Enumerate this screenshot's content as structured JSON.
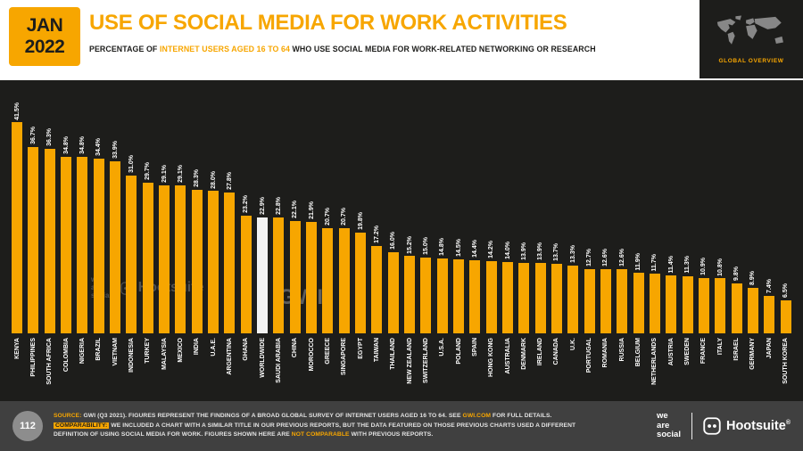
{
  "header": {
    "date_line1": "JAN",
    "date_line2": "2022",
    "title": "USE OF SOCIAL MEDIA FOR WORK ACTIVITIES",
    "subtitle_prefix": "PERCENTAGE OF ",
    "subtitle_highlight": "INTERNET USERS AGED 16 TO 64",
    "subtitle_suffix": " WHO USE SOCIAL MEDIA FOR WORK-RELATED NETWORKING OR RESEARCH",
    "corner_label": "GLOBAL OVERVIEW"
  },
  "chart_data": {
    "type": "bar",
    "title": "USE OF SOCIAL MEDIA FOR WORK ACTIVITIES",
    "ylabel": "Percentage of internet users aged 16 to 64",
    "ylim": [
      0,
      45
    ],
    "grid": false,
    "legend": "none",
    "bar_color": "#f7a600",
    "highlight_color": "#f2f2f2",
    "highlight_category": "WORLDWIDE",
    "value_suffix": "%",
    "categories": [
      "KENYA",
      "PHILIPPINES",
      "SOUTH AFRICA",
      "COLOMBIA",
      "NIGERIA",
      "BRAZIL",
      "VIETNAM",
      "INDONESIA",
      "TURKEY",
      "MALAYSIA",
      "MEXICO",
      "INDIA",
      "U.A.E.",
      "ARGENTINA",
      "GHANA",
      "WORLDWIDE",
      "SAUDI ARABIA",
      "CHINA",
      "MOROCCO",
      "GREECE",
      "SINGAPORE",
      "EGYPT",
      "TAIWAN",
      "THAILAND",
      "NEW ZEALAND",
      "SWITZERLAND",
      "U.S.A.",
      "POLAND",
      "SPAIN",
      "HONG KONG",
      "AUSTRALIA",
      "DENMARK",
      "IRELAND",
      "CANADA",
      "U.K.",
      "PORTUGAL",
      "ROMANIA",
      "RUSSIA",
      "BELGIUM",
      "NETHERLANDS",
      "AUSTRIA",
      "SWEDEN",
      "FRANCE",
      "ITALY",
      "ISRAEL",
      "GERMANY",
      "JAPAN",
      "SOUTH KOREA"
    ],
    "values": [
      41.5,
      36.7,
      36.3,
      34.8,
      34.8,
      34.4,
      33.9,
      31.0,
      29.7,
      29.1,
      29.1,
      28.3,
      28.0,
      27.8,
      23.2,
      22.9,
      22.8,
      22.1,
      21.9,
      20.7,
      20.7,
      19.8,
      17.2,
      16.0,
      15.2,
      15.0,
      14.8,
      14.5,
      14.4,
      14.2,
      14.0,
      13.9,
      13.9,
      13.7,
      13.3,
      12.7,
      12.6,
      12.6,
      11.9,
      11.7,
      11.4,
      11.3,
      10.9,
      10.8,
      9.8,
      8.9,
      7.4,
      6.5
    ]
  },
  "watermarks": {
    "left_lines": [
      "we",
      "are",
      "social"
    ],
    "left_brand": "Hootsuite",
    "center": "GWI."
  },
  "footer": {
    "page_number": "112",
    "source": {
      "label": "SOURCE:",
      "text1": " GWI (Q3 2021). FIGURES REPRESENT THE FINDINGS OF A BROAD GLOBAL SURVEY OF INTERNET USERS AGED 16 TO 64. SEE ",
      "link": "GWI.COM",
      "text2": " FOR FULL DETAILS. ",
      "highlight": "COMPARABILITY:",
      "text3": " WE INCLUDED A CHART WITH A SIMILAR TITLE IN OUR PREVIOUS REPORTS, BUT THE DATA FEATURED ON THOSE PREVIOUS CHARTS USED A DIFFERENT DEFINITION OF USING SOCIAL MEDIA FOR WORK. FIGURES SHOWN HERE ARE ",
      "emph": "NOT COMPARABLE",
      "text4": " WITH PREVIOUS REPORTS."
    },
    "brand1_lines": [
      "we",
      "are",
      "social"
    ],
    "brand2": "Hootsuite",
    "brand2_mark": "®"
  },
  "colors": {
    "accent": "#f7a600",
    "chart_background": "#1d1d1b",
    "footer_background": "#404040"
  }
}
